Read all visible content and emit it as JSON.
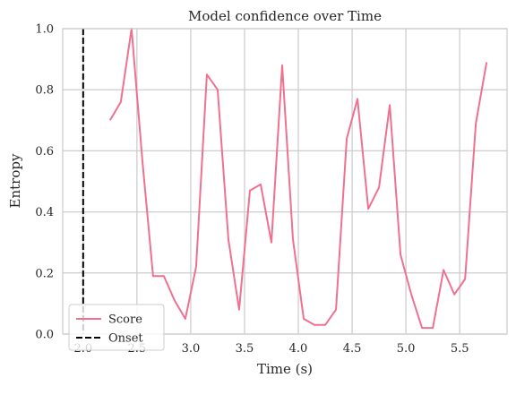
{
  "chart_data": {
    "type": "line",
    "title": "Model confidence over Time",
    "xlabel": "Time (s)",
    "ylabel": "Entropy",
    "xlim": [
      1.81,
      5.94
    ],
    "ylim": [
      0.0,
      1.0
    ],
    "xticks": [
      "2.0",
      "2.5",
      "3.0",
      "3.5",
      "4.0",
      "4.5",
      "5.0",
      "5.5"
    ],
    "xtick_values": [
      2.0,
      2.5,
      3.0,
      3.5,
      4.0,
      4.5,
      5.0,
      5.5
    ],
    "yticks": [
      "0.0",
      "0.2",
      "0.4",
      "0.6",
      "0.8",
      "1.0"
    ],
    "ytick_values": [
      0.0,
      0.2,
      0.4,
      0.6,
      0.8,
      1.0
    ],
    "grid": true,
    "legend_position": "lower-left",
    "series": [
      {
        "name": "Score",
        "color": "#f07090",
        "style": "solid",
        "x": [
          2.25,
          2.35,
          2.45,
          2.55,
          2.65,
          2.75,
          2.85,
          2.95,
          3.05,
          3.15,
          3.25,
          3.35,
          3.45,
          3.55,
          3.65,
          3.75,
          3.85,
          3.95,
          4.05,
          4.15,
          4.25,
          4.35,
          4.45,
          4.55,
          4.65,
          4.75,
          4.85,
          4.95,
          5.05,
          5.15,
          5.25,
          5.35,
          5.45,
          5.55,
          5.65,
          5.75
        ],
        "y": [
          0.7,
          0.76,
          1.0,
          0.57,
          0.19,
          0.19,
          0.11,
          0.05,
          0.22,
          0.85,
          0.8,
          0.31,
          0.08,
          0.47,
          0.49,
          0.3,
          0.88,
          0.31,
          0.05,
          0.03,
          0.03,
          0.08,
          0.64,
          0.77,
          0.41,
          0.48,
          0.75,
          0.26,
          0.13,
          0.02,
          0.02,
          0.21,
          0.13,
          0.18,
          0.69,
          0.89
        ]
      }
    ],
    "vlines": [
      {
        "name": "Onset",
        "x": 2.0,
        "color": "#000000",
        "style": "dashed"
      }
    ]
  }
}
